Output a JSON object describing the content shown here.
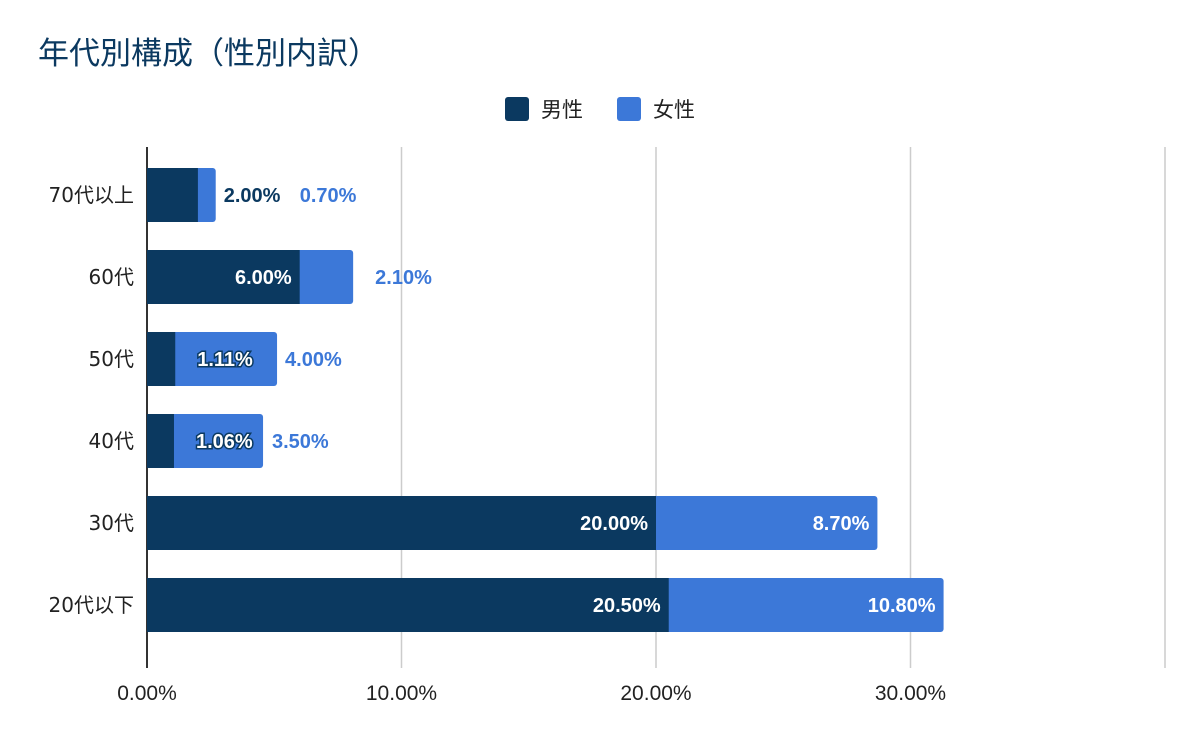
{
  "chart_data": {
    "type": "bar",
    "orientation": "horizontal",
    "stacked": true,
    "title": "年代別構成（性別内訳）",
    "categories": [
      "70代以上",
      "60代",
      "50代",
      "40代",
      "30代",
      "20代以下"
    ],
    "series": [
      {
        "name": "男性",
        "color": "#0b3960",
        "values": [
          2.0,
          6.0,
          1.11,
          1.06,
          20.0,
          20.5
        ],
        "labels": [
          "2.00%",
          "6.00%",
          "1.11%",
          "1.06%",
          "20.00%",
          "20.50%"
        ]
      },
      {
        "name": "女性",
        "color": "#3c78d8",
        "values": [
          0.7,
          2.1,
          4.0,
          3.5,
          8.7,
          10.8
        ],
        "labels": [
          "0.70%",
          "2.10%",
          "4.00%",
          "3.50%",
          "8.70%",
          "10.80%"
        ]
      }
    ],
    "xlim": [
      0,
      40
    ],
    "xticks": [
      "0.00%",
      "10.00%",
      "20.00%",
      "30.00%"
    ],
    "xlabel": "",
    "ylabel": "",
    "grid": true,
    "legend_position": "top-center"
  }
}
